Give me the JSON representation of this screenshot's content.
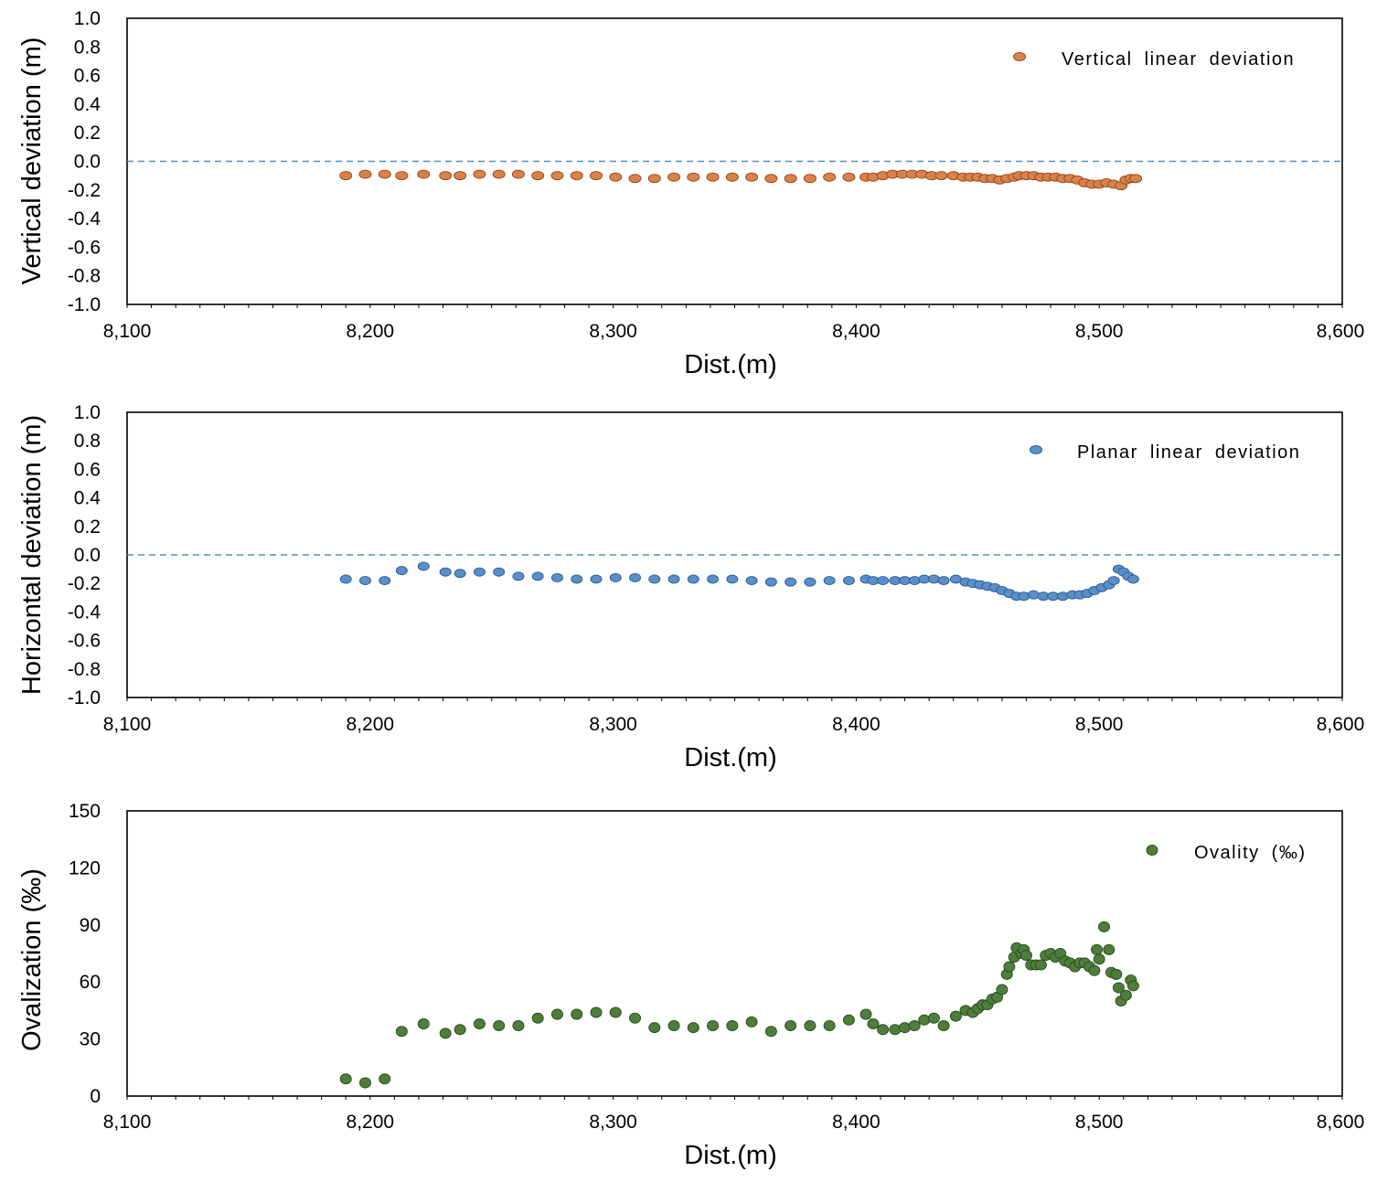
{
  "chart_data": [
    {
      "type": "scatter",
      "xlabel": "Dist.(m)",
      "ylabel": "Vertical deviation (m)",
      "xlim": [
        8100,
        8600
      ],
      "ylim": [
        -1.0,
        1.0
      ],
      "x_ticks": [
        "8,100",
        "8,200",
        "8,300",
        "8,400",
        "8,500",
        "8,600"
      ],
      "y_ticks": [
        "1.0",
        "0.8",
        "0.6",
        "0.4",
        "0.2",
        "0.0",
        "-0.2",
        "-0.4",
        "-0.6",
        "-0.8",
        "-1.0"
      ],
      "reference_line": 0.0,
      "legend_position": "top-right",
      "marker_color": "#d9824a",
      "marker_edge": "#9a4a1c",
      "series": [
        {
          "name": "Vertical linear deviation",
          "points": [
            [
              8190,
              -0.1
            ],
            [
              8198,
              -0.09
            ],
            [
              8206,
              -0.09
            ],
            [
              8213,
              -0.1
            ],
            [
              8222,
              -0.09
            ],
            [
              8231,
              -0.1
            ],
            [
              8237,
              -0.1
            ],
            [
              8245,
              -0.09
            ],
            [
              8253,
              -0.09
            ],
            [
              8261,
              -0.09
            ],
            [
              8269,
              -0.1
            ],
            [
              8277,
              -0.1
            ],
            [
              8285,
              -0.1
            ],
            [
              8293,
              -0.1
            ],
            [
              8301,
              -0.11
            ],
            [
              8309,
              -0.12
            ],
            [
              8317,
              -0.12
            ],
            [
              8325,
              -0.11
            ],
            [
              8333,
              -0.11
            ],
            [
              8341,
              -0.11
            ],
            [
              8349,
              -0.11
            ],
            [
              8357,
              -0.11
            ],
            [
              8365,
              -0.12
            ],
            [
              8373,
              -0.12
            ],
            [
              8381,
              -0.12
            ],
            [
              8389,
              -0.11
            ],
            [
              8397,
              -0.11
            ],
            [
              8404,
              -0.11
            ],
            [
              8407,
              -0.11
            ],
            [
              8411,
              -0.1
            ],
            [
              8415,
              -0.09
            ],
            [
              8419,
              -0.09
            ],
            [
              8423,
              -0.09
            ],
            [
              8427,
              -0.09
            ],
            [
              8431,
              -0.1
            ],
            [
              8435,
              -0.1
            ],
            [
              8440,
              -0.1
            ],
            [
              8444,
              -0.11
            ],
            [
              8447,
              -0.11
            ],
            [
              8450,
              -0.11
            ],
            [
              8453,
              -0.12
            ],
            [
              8456,
              -0.12
            ],
            [
              8459,
              -0.13
            ],
            [
              8462,
              -0.12
            ],
            [
              8465,
              -0.11
            ],
            [
              8467,
              -0.1
            ],
            [
              8470,
              -0.1
            ],
            [
              8473,
              -0.1
            ],
            [
              8476,
              -0.11
            ],
            [
              8479,
              -0.11
            ],
            [
              8482,
              -0.11
            ],
            [
              8485,
              -0.12
            ],
            [
              8488,
              -0.12
            ],
            [
              8491,
              -0.13
            ],
            [
              8494,
              -0.15
            ],
            [
              8497,
              -0.16
            ],
            [
              8500,
              -0.16
            ],
            [
              8503,
              -0.15
            ],
            [
              8506,
              -0.16
            ],
            [
              8509,
              -0.17
            ],
            [
              8511,
              -0.13
            ],
            [
              8513,
              -0.12
            ],
            [
              8515,
              -0.12
            ]
          ]
        }
      ]
    },
    {
      "type": "scatter",
      "xlabel": "Dist.(m)",
      "ylabel": "Horizontal deviation (m)",
      "xlim": [
        8100,
        8600
      ],
      "ylim": [
        -1.0,
        1.0
      ],
      "x_ticks": [
        "8,100",
        "8,200",
        "8,300",
        "8,400",
        "8,500",
        "8,600"
      ],
      "y_ticks": [
        "1.0",
        "0.8",
        "0.6",
        "0.4",
        "0.2",
        "0.0",
        "-0.2",
        "-0.4",
        "-0.6",
        "-0.8",
        "-1.0"
      ],
      "reference_line": 0.0,
      "legend_position": "top-right",
      "marker_color": "#5b8fcb",
      "marker_edge": "#2f5f95",
      "series": [
        {
          "name": "Planar linear deviation",
          "points": [
            [
              8190,
              -0.17
            ],
            [
              8198,
              -0.18
            ],
            [
              8206,
              -0.18
            ],
            [
              8213,
              -0.11
            ],
            [
              8222,
              -0.08
            ],
            [
              8231,
              -0.12
            ],
            [
              8237,
              -0.13
            ],
            [
              8245,
              -0.12
            ],
            [
              8253,
              -0.12
            ],
            [
              8261,
              -0.15
            ],
            [
              8269,
              -0.15
            ],
            [
              8277,
              -0.16
            ],
            [
              8285,
              -0.17
            ],
            [
              8293,
              -0.17
            ],
            [
              8301,
              -0.16
            ],
            [
              8309,
              -0.16
            ],
            [
              8317,
              -0.17
            ],
            [
              8325,
              -0.17
            ],
            [
              8333,
              -0.17
            ],
            [
              8341,
              -0.17
            ],
            [
              8349,
              -0.17
            ],
            [
              8357,
              -0.18
            ],
            [
              8365,
              -0.19
            ],
            [
              8373,
              -0.19
            ],
            [
              8381,
              -0.19
            ],
            [
              8389,
              -0.18
            ],
            [
              8397,
              -0.18
            ],
            [
              8404,
              -0.17
            ],
            [
              8407,
              -0.18
            ],
            [
              8411,
              -0.18
            ],
            [
              8416,
              -0.18
            ],
            [
              8420,
              -0.18
            ],
            [
              8424,
              -0.18
            ],
            [
              8428,
              -0.17
            ],
            [
              8432,
              -0.17
            ],
            [
              8436,
              -0.18
            ],
            [
              8441,
              -0.17
            ],
            [
              8445,
              -0.19
            ],
            [
              8448,
              -0.2
            ],
            [
              8451,
              -0.21
            ],
            [
              8454,
              -0.22
            ],
            [
              8457,
              -0.23
            ],
            [
              8460,
              -0.25
            ],
            [
              8463,
              -0.27
            ],
            [
              8466,
              -0.29
            ],
            [
              8469,
              -0.29
            ],
            [
              8473,
              -0.28
            ],
            [
              8477,
              -0.29
            ],
            [
              8481,
              -0.29
            ],
            [
              8485,
              -0.29
            ],
            [
              8489,
              -0.28
            ],
            [
              8492,
              -0.28
            ],
            [
              8495,
              -0.27
            ],
            [
              8498,
              -0.25
            ],
            [
              8501,
              -0.23
            ],
            [
              8504,
              -0.21
            ],
            [
              8506,
              -0.18
            ],
            [
              8508,
              -0.1
            ],
            [
              8510,
              -0.12
            ],
            [
              8512,
              -0.15
            ],
            [
              8514,
              -0.17
            ]
          ]
        }
      ]
    },
    {
      "type": "scatter",
      "xlabel": "Dist.(m)",
      "ylabel": "Ovalization (‰)",
      "xlim": [
        8100,
        8600
      ],
      "ylim": [
        0,
        150
      ],
      "x_ticks": [
        "8,100",
        "8,200",
        "8,300",
        "8,400",
        "8,500",
        "8,600"
      ],
      "y_ticks": [
        "150",
        "120",
        "90",
        "60",
        "30",
        "0"
      ],
      "legend_position": "top-right",
      "marker_color": "#4e7d3c",
      "marker_edge": "#2b5220",
      "series": [
        {
          "name": "Ovality (‰)",
          "points": [
            [
              8190,
              9
            ],
            [
              8198,
              7
            ],
            [
              8206,
              9
            ],
            [
              8213,
              34
            ],
            [
              8222,
              38
            ],
            [
              8231,
              33
            ],
            [
              8237,
              35
            ],
            [
              8245,
              38
            ],
            [
              8253,
              37
            ],
            [
              8261,
              37
            ],
            [
              8269,
              41
            ],
            [
              8277,
              43
            ],
            [
              8285,
              43
            ],
            [
              8293,
              44
            ],
            [
              8301,
              44
            ],
            [
              8309,
              41
            ],
            [
              8317,
              36
            ],
            [
              8325,
              37
            ],
            [
              8333,
              36
            ],
            [
              8341,
              37
            ],
            [
              8349,
              37
            ],
            [
              8357,
              39
            ],
            [
              8365,
              34
            ],
            [
              8373,
              37
            ],
            [
              8381,
              37
            ],
            [
              8389,
              37
            ],
            [
              8397,
              40
            ],
            [
              8404,
              43
            ],
            [
              8407,
              38
            ],
            [
              8411,
              35
            ],
            [
              8416,
              35
            ],
            [
              8420,
              36
            ],
            [
              8424,
              37
            ],
            [
              8428,
              40
            ],
            [
              8432,
              41
            ],
            [
              8436,
              37
            ],
            [
              8441,
              42
            ],
            [
              8445,
              45
            ],
            [
              8448,
              44
            ],
            [
              8450,
              46
            ],
            [
              8452,
              48
            ],
            [
              8454,
              48
            ],
            [
              8456,
              51
            ],
            [
              8458,
              52
            ],
            [
              8460,
              56
            ],
            [
              8462,
              64
            ],
            [
              8463,
              68
            ],
            [
              8465,
              73
            ],
            [
              8466,
              78
            ],
            [
              8468,
              75
            ],
            [
              8469,
              77
            ],
            [
              8470,
              74
            ],
            [
              8472,
              69
            ],
            [
              8474,
              69
            ],
            [
              8476,
              69
            ],
            [
              8478,
              74
            ],
            [
              8480,
              75
            ],
            [
              8482,
              73
            ],
            [
              8484,
              75
            ],
            [
              8486,
              71
            ],
            [
              8488,
              70
            ],
            [
              8490,
              68
            ],
            [
              8492,
              70
            ],
            [
              8494,
              70
            ],
            [
              8496,
              68
            ],
            [
              8498,
              66
            ],
            [
              8499,
              77
            ],
            [
              8500,
              72
            ],
            [
              8502,
              89
            ],
            [
              8504,
              77
            ],
            [
              8505,
              65
            ],
            [
              8507,
              64
            ],
            [
              8508,
              57
            ],
            [
              8509,
              50
            ],
            [
              8511,
              53
            ],
            [
              8513,
              61
            ],
            [
              8514,
              58
            ]
          ]
        }
      ]
    }
  ]
}
